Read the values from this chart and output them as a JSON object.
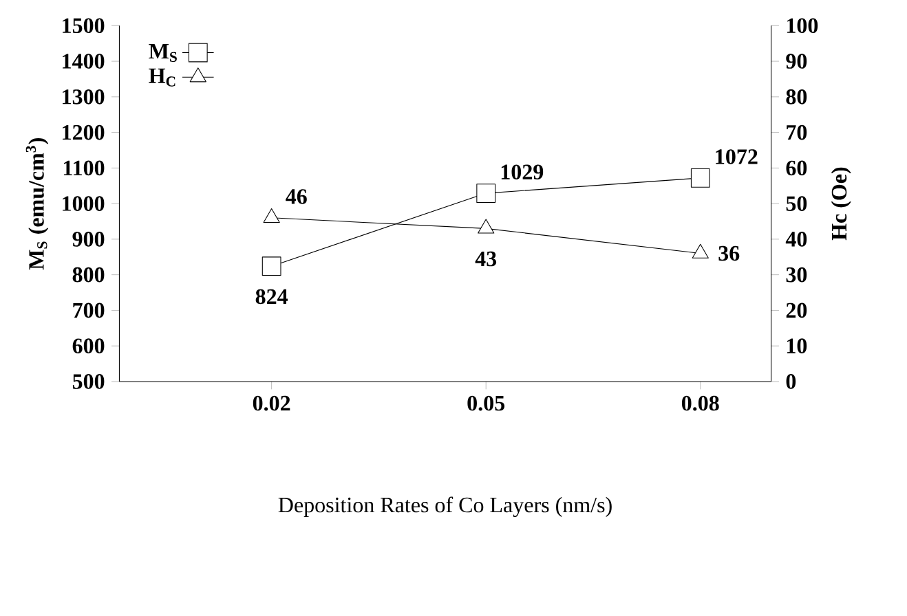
{
  "chart_data": {
    "type": "line",
    "categories": [
      "0.02",
      "0.05",
      "0.08"
    ],
    "xlabel": "Deposition Rates of Co Layers (nm/s)",
    "ylabel": "M$_{S}$ (emu/cm$^{3}$)",
    "y2label": "Hc (Oe)",
    "ylim": [
      500,
      1500
    ],
    "yticks": [
      500,
      600,
      700,
      800,
      900,
      1000,
      1100,
      1200,
      1300,
      1400,
      1500
    ],
    "y2lim": [
      0,
      100
    ],
    "y2ticks": [
      0,
      10,
      20,
      30,
      40,
      50,
      60,
      70,
      80,
      90,
      100
    ],
    "legend": "top left",
    "grid": false,
    "line_style": "solid",
    "series": [
      {
        "name": "M$_{S}$",
        "color": "#000000",
        "marker": "square",
        "values": [
          824,
          1029,
          1072
        ],
        "value_labels": [
          "824",
          "1029",
          "1072"
        ]
      },
      {
        "name": "H$_{C}$",
        "color": "#000000",
        "marker": "triangle",
        "axis": "y2",
        "values": [
          46,
          43,
          36
        ],
        "value_labels": [
          "46",
          "43",
          "36"
        ]
      }
    ]
  }
}
